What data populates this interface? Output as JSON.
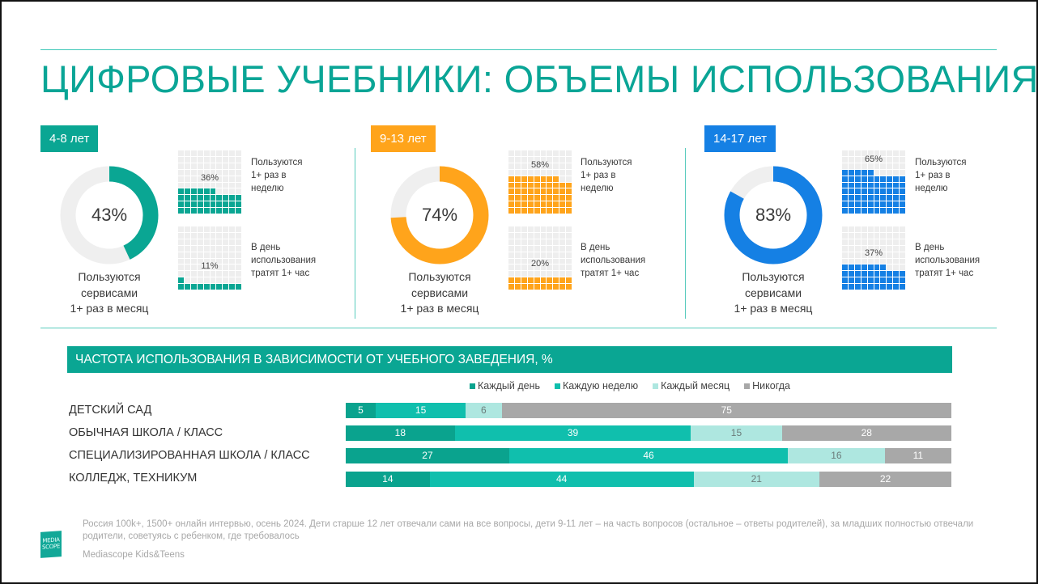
{
  "page": {
    "title": "ЦИФРОВЫЕ УЧЕБНИКИ: ОБЪЕМЫ ИСПОЛЬЗОВАНИЯ",
    "accent_color": "#0aa596"
  },
  "panels": [
    {
      "badge": "4-8 лет",
      "color": "#0aa693",
      "monthly_pct": 43,
      "monthly_label": "43%",
      "monthly_caption": [
        "Пользуются",
        "сервисами",
        "1+ раз в месяц"
      ],
      "weekly_pct": 36,
      "weekly_label": "36%",
      "weekly_desc": [
        "Пользуются",
        "1+ раз в",
        "неделю"
      ],
      "hour_pct": 11,
      "hour_label": "11%",
      "hour_desc": [
        "В день",
        "использования",
        "тратят 1+ час"
      ]
    },
    {
      "badge": "9-13 лет",
      "color": "#ffa41b",
      "monthly_pct": 74,
      "monthly_label": "74%",
      "monthly_caption": [
        "Пользуются",
        "сервисами",
        "1+ раз в месяц"
      ],
      "weekly_pct": 58,
      "weekly_label": "58%",
      "weekly_desc": [
        "Пользуются",
        "1+ раз в",
        "неделю"
      ],
      "hour_pct": 20,
      "hour_label": "20%",
      "hour_desc": [
        "В день",
        "использования",
        "тратят 1+ час"
      ]
    },
    {
      "badge": "14-17 лет",
      "color": "#1580e4",
      "monthly_pct": 83,
      "monthly_label": "83%",
      "monthly_caption": [
        "Пользуются",
        "сервисами",
        "1+ раз в месяц"
      ],
      "weekly_pct": 65,
      "weekly_label": "65%",
      "weekly_desc": [
        "Пользуются",
        "1+ раз в",
        "неделю"
      ],
      "hour_pct": 37,
      "hour_label": "37%",
      "hour_desc": [
        "В день",
        "использования",
        "тратят 1+ час"
      ]
    }
  ],
  "frequency": {
    "title": "ЧАСТОТА ИСПОЛЬЗОВАНИЯ В ЗАВИСИМОСТИ ОТ УЧЕБНОГО ЗАВЕДЕНИЯ, %",
    "legend": [
      {
        "label": "Каждый день",
        "color": "#0aa38e"
      },
      {
        "label": "Каждую неделю",
        "color": "#10bfad"
      },
      {
        "label": "Каждый месяц",
        "color": "#aee7e0"
      },
      {
        "label": "Никогда",
        "color": "#a8a8a8"
      }
    ],
    "rows": [
      {
        "label": "ДЕТСКИЙ САД",
        "values": [
          5,
          15,
          6,
          75
        ]
      },
      {
        "label": "ОБЫЧНАЯ ШКОЛА / КЛАСС",
        "values": [
          18,
          39,
          15,
          28
        ]
      },
      {
        "label": "СПЕЦИАЛИЗИРОВАННАЯ ШКОЛА / КЛАСС",
        "values": [
          27,
          46,
          16,
          11
        ]
      },
      {
        "label": "КОЛЛЕДЖ, ТЕХНИКУМ",
        "values": [
          14,
          44,
          21,
          22
        ]
      }
    ]
  },
  "footer": {
    "note": "Россия 100k+, 1500+ онлайн интервью, осень 2024. Дети старше 12 лет отвечали сами на все вопросы, дети 9-11 лет – на часть вопросов (остальное – ответы родителей), за младших полностью отвечали родители, советуясь с ребенком, где требовалось",
    "brand": "Mediascope Kids&Teens",
    "logo_text": [
      "MEDIA",
      "SCOPE"
    ]
  },
  "chart_data": [
    {
      "type": "pie",
      "title": "Пользуются сервисами 1+ раз в месяц",
      "categories": [
        "4-8 лет",
        "9-13 лет",
        "14-17 лет"
      ],
      "values": [
        43,
        74,
        83
      ],
      "unit": "%"
    },
    {
      "type": "bar",
      "title": "Пользуются 1+ раз в неделю",
      "categories": [
        "4-8 лет",
        "9-13 лет",
        "14-17 лет"
      ],
      "values": [
        36,
        58,
        65
      ],
      "unit": "%"
    },
    {
      "type": "bar",
      "title": "В день использования тратят 1+ час",
      "categories": [
        "4-8 лет",
        "9-13 лет",
        "14-17 лет"
      ],
      "values": [
        11,
        20,
        37
      ],
      "unit": "%"
    },
    {
      "type": "bar",
      "orientation": "horizontal",
      "stacked": true,
      "title": "ЧАСТОТА ИСПОЛЬЗОВАНИЯ В ЗАВИСИМОСТИ ОТ УЧЕБНОГО ЗАВЕДЕНИЯ, %",
      "categories": [
        "ДЕТСКИЙ САД",
        "ОБЫЧНАЯ ШКОЛА / КЛАСС",
        "СПЕЦИАЛИЗИРОВАННАЯ ШКОЛА / КЛАСС",
        "КОЛЛЕДЖ, ТЕХНИКУМ"
      ],
      "series": [
        {
          "name": "Каждый день",
          "values": [
            5,
            18,
            27,
            14
          ]
        },
        {
          "name": "Каждую неделю",
          "values": [
            15,
            39,
            46,
            44
          ]
        },
        {
          "name": "Каждый месяц",
          "values": [
            6,
            15,
            16,
            21
          ]
        },
        {
          "name": "Никогда",
          "values": [
            75,
            28,
            11,
            22
          ]
        }
      ],
      "legend_position": "top",
      "xlim": [
        0,
        100
      ]
    }
  ]
}
